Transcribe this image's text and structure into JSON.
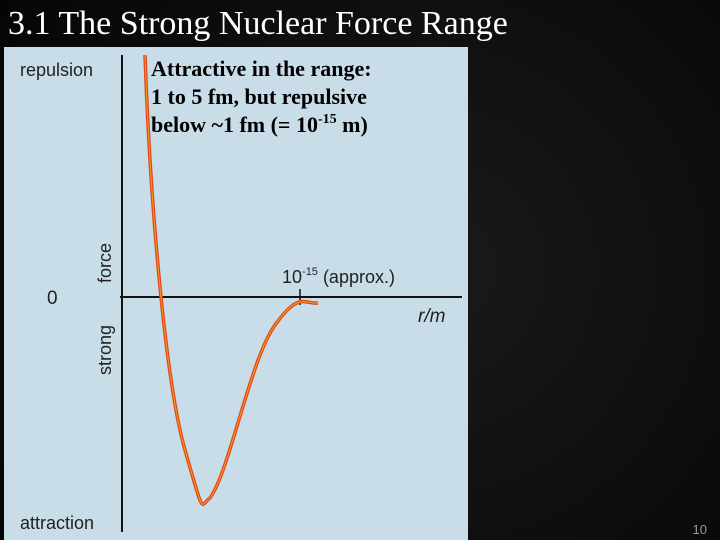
{
  "slide": {
    "title": "3.1 The Strong Nuclear Force Range",
    "callout": {
      "lines": [
        "Attractive in the range:",
        "1 to 5 fm, but repulsive"
      ],
      "last_line": {
        "before": "below ~1 fm (= 10",
        "superscript": "-15",
        "after": " m)"
      }
    },
    "figure": {
      "top_label": "repulsion",
      "bottom_label": "attraction",
      "axis_word_1": "strong",
      "axis_word_2": "force",
      "origin_label": "0",
      "x_axis_label": "r/m",
      "marker_label": {
        "base": "10",
        "superscript": "-15",
        "rest": " (approx.)"
      }
    },
    "page_number": "10"
  }
}
